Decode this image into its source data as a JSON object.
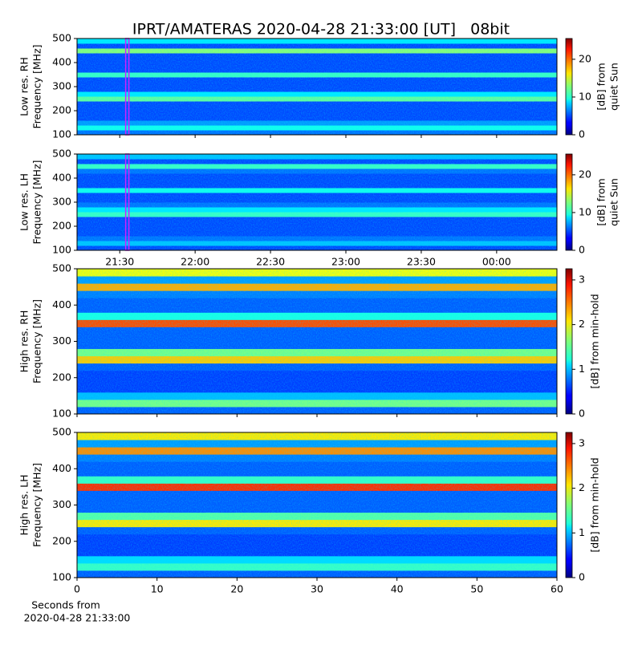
{
  "chart_data": [
    {
      "type": "heatmap",
      "title": "IPRT/AMATERAS 2020-04-28 21:33:00 [UT]   08bit",
      "ylabel": [
        "Low res. RH",
        "Frequency [MHz]"
      ],
      "clabel": [
        "[dB] from",
        "quiet Sun"
      ],
      "xlim": [
        1273,
        1464
      ],
      "xticks": [
        {
          "value": 1290,
          "label": "21:30"
        },
        {
          "value": 1320,
          "label": "22:00"
        },
        {
          "value": 1350,
          "label": "22:30"
        },
        {
          "value": 1380,
          "label": "23:00"
        },
        {
          "value": 1410,
          "label": "23:30"
        },
        {
          "value": 1440,
          "label": "00:00"
        }
      ],
      "show_xtick_labels": false,
      "marker_x": 1293,
      "ylim": [
        100,
        500
      ],
      "yticks": [
        100,
        200,
        300,
        400,
        500
      ],
      "clim": [
        0,
        25.5
      ],
      "cticks": [
        0,
        10,
        20
      ],
      "colormap": "jet",
      "z": [
        6,
        10,
        7,
        5,
        5,
        5,
        5,
        12,
        9,
        5,
        5,
        5,
        11,
        5,
        5,
        5,
        5,
        13,
        5,
        9
      ]
    },
    {
      "type": "heatmap",
      "ylabel": [
        "Low res. LH",
        "Frequency [MHz]"
      ],
      "clabel": [
        "[dB] from",
        "quiet Sun"
      ],
      "xlim": [
        1273,
        1464
      ],
      "xticks": [
        {
          "value": 1290,
          "label": "21:30"
        },
        {
          "value": 1320,
          "label": "22:00"
        },
        {
          "value": 1350,
          "label": "22:30"
        },
        {
          "value": 1380,
          "label": "23:00"
        },
        {
          "value": 1410,
          "label": "23:30"
        },
        {
          "value": 1440,
          "label": "00:00"
        }
      ],
      "show_xtick_labels": true,
      "marker_x": 1293,
      "ylim": [
        100,
        500
      ],
      "yticks": [
        100,
        200,
        300,
        400,
        500
      ],
      "clim": [
        0,
        25.5
      ],
      "cticks": [
        0,
        10,
        20
      ],
      "colormap": "jet",
      "z": [
        5,
        8,
        6,
        5,
        5,
        5,
        5,
        11,
        9,
        6,
        5,
        5,
        10,
        5,
        5,
        5,
        6,
        11,
        5,
        8
      ]
    },
    {
      "type": "heatmap",
      "ylabel": [
        "High res. RH",
        "Frequency [MHz]"
      ],
      "clabel": [
        "[dB] from min-hold"
      ],
      "xlim": [
        0,
        60
      ],
      "xticks": [
        0,
        10,
        20,
        30,
        40,
        50,
        60
      ],
      "show_xtick_labels": false,
      "ylim": [
        100,
        500
      ],
      "yticks": [
        100,
        200,
        300,
        400,
        500
      ],
      "clim": [
        0,
        3.25
      ],
      "cticks": [
        0,
        1,
        2,
        3
      ],
      "colormap": "jet",
      "z": [
        0.7,
        1.6,
        1.0,
        0.6,
        0.6,
        0.6,
        0.7,
        2.2,
        1.6,
        0.7,
        0.7,
        0.7,
        2.6,
        1.3,
        0.7,
        0.7,
        0.8,
        2.3,
        0.9,
        2.0
      ]
    },
    {
      "type": "heatmap",
      "ylabel": [
        "High res. LH",
        "Frequency [MHz]"
      ],
      "clabel": [
        "[dB] from min-hold"
      ],
      "xlabel": [
        "Seconds from",
        "2020-04-28 21:33:00"
      ],
      "xlim": [
        0,
        60
      ],
      "xticks": [
        0,
        10,
        20,
        30,
        40,
        50,
        60
      ],
      "show_xtick_labels": true,
      "ylim": [
        100,
        500
      ],
      "yticks": [
        100,
        200,
        300,
        400,
        500
      ],
      "clim": [
        0,
        3.25
      ],
      "cticks": [
        0,
        1,
        2,
        3
      ],
      "colormap": "jet",
      "z": [
        0.7,
        1.4,
        1.1,
        0.6,
        0.6,
        0.6,
        0.7,
        2.1,
        1.5,
        0.7,
        0.7,
        0.7,
        2.7,
        1.4,
        0.7,
        0.7,
        0.8,
        2.4,
        0.9,
        2.1
      ]
    }
  ]
}
